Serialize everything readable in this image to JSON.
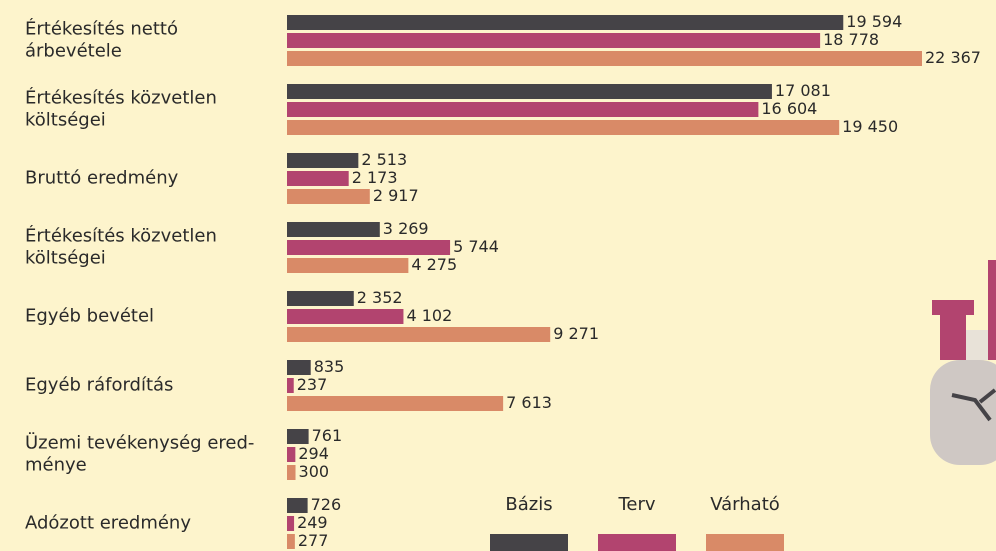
{
  "chart_data": {
    "type": "bar",
    "orientation": "horizontal",
    "categories": [
      [
        "Értékesítés nettó",
        "árbevétele"
      ],
      [
        "Értékesítés közvetlen",
        "költségei"
      ],
      [
        "Bruttó eredmény"
      ],
      [
        "Értékesítés közvetlen",
        "költségei"
      ],
      [
        "Egyéb bevétel"
      ],
      [
        "Egyéb ráfordítás"
      ],
      [
        "Üzemi tevékenység ered-",
        "ménye"
      ],
      [
        "Adózott eredmény"
      ]
    ],
    "series": [
      {
        "name": "Bázis",
        "color": "#454347",
        "values": [
          19594,
          17081,
          2513,
          3269,
          2352,
          835,
          761,
          726
        ],
        "value_labels": [
          "19 594",
          "17 081",
          "2 513",
          "3 269",
          "2 352",
          "835",
          "761",
          "726"
        ]
      },
      {
        "name": "Terv",
        "color": "#b2446f",
        "values": [
          18778,
          16604,
          2173,
          5744,
          4102,
          237,
          294,
          249
        ],
        "value_labels": [
          "18 778",
          "16 604",
          "2 173",
          "5 744",
          "4 102",
          "237",
          "294",
          "249"
        ]
      },
      {
        "name": "Várható",
        "color": "#d98a67",
        "values": [
          22367,
          19450,
          2917,
          4275,
          9271,
          7613,
          300,
          277
        ],
        "value_labels": [
          "22 367",
          "19 450",
          "2 917",
          "4 275",
          "9 271",
          "7 613",
          "300",
          "277"
        ]
      }
    ],
    "legend": "bottom"
  }
}
